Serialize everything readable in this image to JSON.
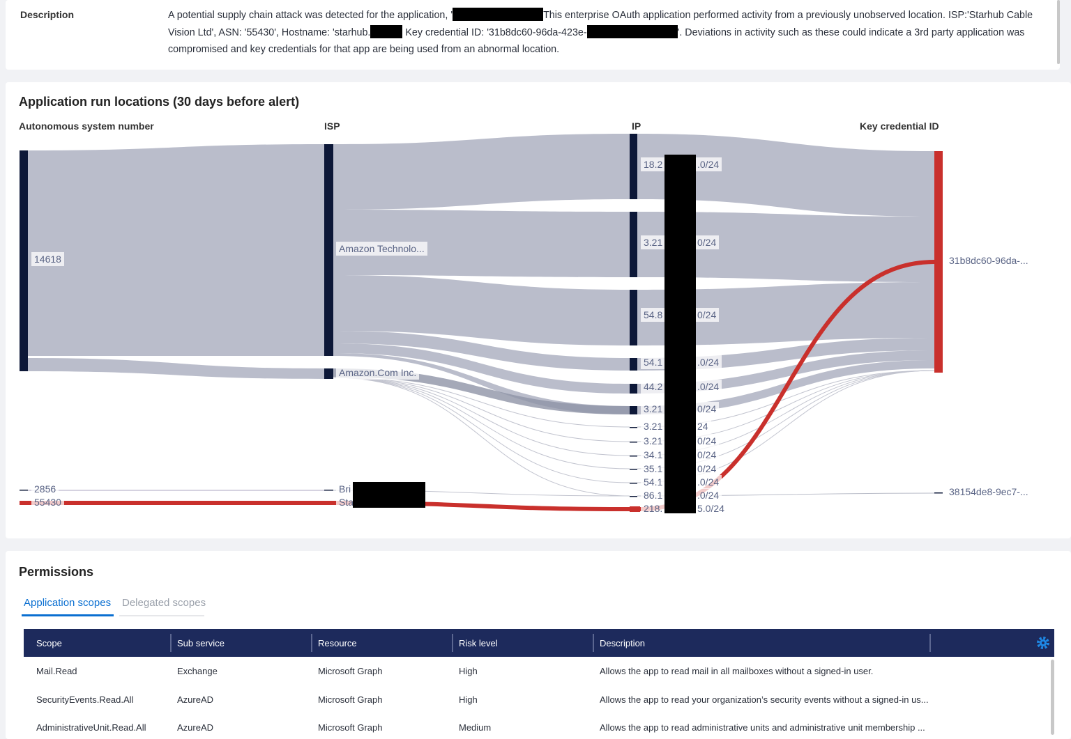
{
  "description": {
    "label": "Description",
    "parts": [
      "A potential supply chain attack was detected for the application, '",
      "This enterprise OAuth application performed activity from a previously unobserved location. ISP:'Starhub Cable Vision Ltd', ASN: '55430', Hostname: 'starhub.",
      " Key credential ID: '31b8dc60-96da-423e-",
      "'. Deviations in activity such as these could indicate a 3rd party application was compromised and key credentials for that app are being used from an abnormal location."
    ]
  },
  "sankey": {
    "title": "Application run locations (30 days before alert)",
    "columns": [
      "Autonomous system number",
      "ISP",
      "IP",
      "Key credential ID"
    ],
    "asn": [
      "14618",
      "2856",
      "55430"
    ],
    "isp": [
      "Amazon Technolo...",
      "Amazon.Com Inc.",
      "Bri",
      "Sta"
    ],
    "ip": [
      [
        "18.2",
        ".0/24"
      ],
      [
        "3.21",
        "0/24"
      ],
      [
        "54.8",
        "0/24"
      ],
      [
        "54.1",
        ".0/24"
      ],
      [
        "44.2",
        ".0/24"
      ],
      [
        "3.21",
        "0/24"
      ],
      [
        "3.21",
        "24"
      ],
      [
        "3.21",
        "0/24"
      ],
      [
        "34.1",
        "0/24"
      ],
      [
        "35.1",
        "0/24"
      ],
      [
        "54.1",
        ".0/24"
      ],
      [
        "86.1",
        ".0/24"
      ],
      [
        "218.",
        "5.0/24"
      ]
    ],
    "key_credential": [
      "31b8dc60-96da-...",
      "38154de8-9ec7-..."
    ]
  },
  "permissions": {
    "title": "Permissions",
    "tabs": [
      "Application scopes",
      "Delegated scopes"
    ],
    "table": {
      "headers": [
        "Scope",
        "Sub service",
        "Resource",
        "Risk level",
        "Description"
      ],
      "rows": [
        [
          "Mail.Read",
          "Exchange",
          "Microsoft Graph",
          "High",
          "Allows the app to read mail in all mailboxes without a signed-in user."
        ],
        [
          "SecurityEvents.Read.All",
          "AzureAD",
          "Microsoft Graph",
          "High",
          "Allows the app to read your organization’s security events without a signed-in us..."
        ],
        [
          "AdministrativeUnit.Read.All",
          "AzureAD",
          "Microsoft Graph",
          "Medium",
          "Allows the app to read administrative units and administrative unit membership ..."
        ]
      ]
    }
  }
}
